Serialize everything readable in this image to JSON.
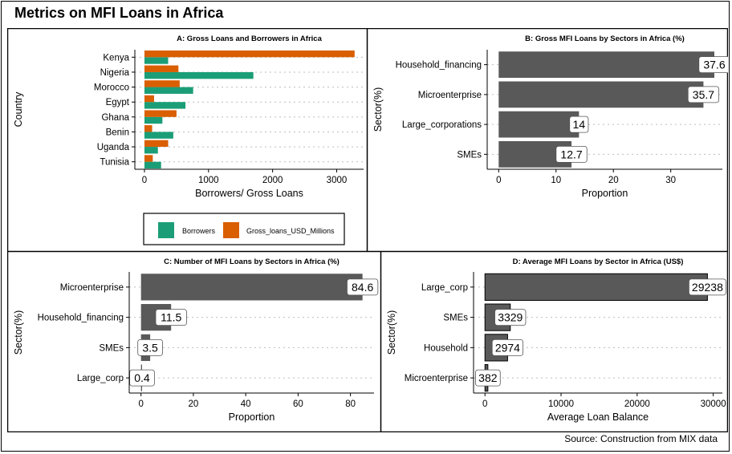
{
  "title": "Metrics on MFI Loans in Africa",
  "source": "Source: Construction from MIX data",
  "colors": {
    "borrowers": "#1b9e77",
    "gross_loans": "#d95f02",
    "bar": "#595959"
  },
  "chart_data": [
    {
      "type": "bar",
      "orientation": "horizontal",
      "title": "A: Gross Loans and Borrowers in Africa",
      "xlabel": "Borrowers/ Gross Loans",
      "ylabel": "Country",
      "categories": [
        "Kenya",
        "Nigeria",
        "Morocco",
        "Egypt",
        "Ghana",
        "Benin",
        "Uganda",
        "Tunisia"
      ],
      "series": [
        {
          "name": "Borrowers",
          "values": [
            370,
            1700,
            760,
            640,
            280,
            450,
            210,
            260
          ]
        },
        {
          "name": "Gross_loans_USD_Millions",
          "values": [
            3280,
            530,
            550,
            150,
            500,
            120,
            370,
            130
          ]
        }
      ],
      "xlim": [
        -150,
        3420
      ],
      "xticks": [
        0,
        1000,
        2000,
        3000
      ],
      "xtick_labels": [
        "0",
        "1000",
        "2000",
        "3000"
      ],
      "legend_position": "bottom"
    },
    {
      "type": "bar",
      "orientation": "horizontal",
      "title": "B: Gross MFI Loans by Sectors in Africa (%)",
      "xlabel": "Proportion",
      "ylabel": "Sector(%)",
      "categories": [
        "Household_financing",
        "Microenterprise",
        "Large_corporations",
        "SMEs"
      ],
      "values": [
        37.6,
        35.7,
        14,
        12.7
      ],
      "labels": [
        "37.6",
        "35.7",
        "14",
        "12.7"
      ],
      "xlim": [
        -2,
        39
      ],
      "xticks": [
        0,
        10,
        20,
        30
      ],
      "xtick_labels": [
        "0",
        "10",
        "20",
        "30"
      ]
    },
    {
      "type": "bar",
      "orientation": "horizontal",
      "title": "C: Number of MFI Loans by Sectors in Africa (%)",
      "xlabel": "Proportion",
      "ylabel": "Sector(%)",
      "categories": [
        "Microenterprise",
        "Household_financing",
        "SMEs",
        "Large_corp"
      ],
      "values": [
        84.6,
        11.5,
        3.5,
        0.4
      ],
      "labels": [
        "84.6",
        "11.5",
        "3.5",
        "0.4"
      ],
      "xlim": [
        -4.5,
        89
      ],
      "xticks": [
        0,
        20,
        40,
        60,
        80
      ],
      "xtick_labels": [
        "0",
        "20",
        "40",
        "60",
        "80"
      ]
    },
    {
      "type": "bar",
      "orientation": "horizontal",
      "title": "D: Average MFI Loans by Sector in Africa (US$)",
      "xlabel": "Average Loan Balance",
      "ylabel": "Sector(%)",
      "categories": [
        "Large_corp",
        "SMEs",
        "Household",
        "Microenterprise"
      ],
      "values": [
        29238,
        3329,
        2974,
        382
      ],
      "labels": [
        "29238",
        "3329",
        "2974",
        "382"
      ],
      "xlim": [
        -1500,
        31200
      ],
      "xticks": [
        0,
        10000,
        20000,
        30000
      ],
      "xtick_labels": [
        "0",
        "10000",
        "20000",
        "30000"
      ]
    }
  ]
}
